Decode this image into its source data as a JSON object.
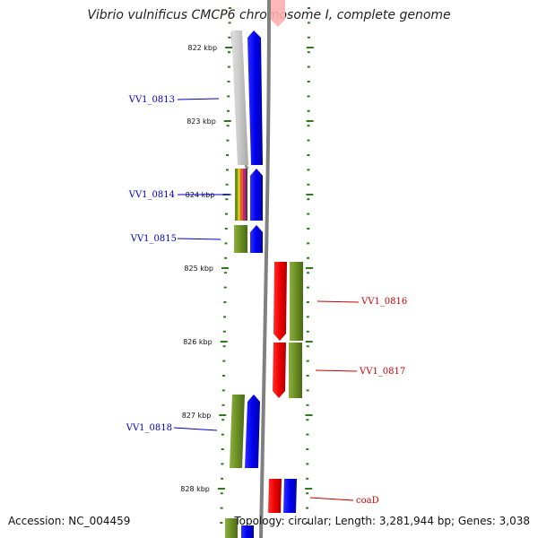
{
  "title": "Vibrio vulnificus CMCP6 chromosome I, complete genome",
  "footer": {
    "accession": "Accession: NC_004459",
    "stats": "Topology: circular; Length: 3,281,944 bp; Genes: 3,038"
  },
  "colors": {
    "forward_gene": "#0000ff",
    "reverse_gene": "#ff0000",
    "cog_green": "#6b8e23",
    "cog_gray": "#c8c8c8",
    "ticks": "#2f7a1f",
    "backbone": "#808080"
  },
  "scale_labels": [
    "822 kbp",
    "823 kbp",
    "824 kbp",
    "825 kbp",
    "826 kbp",
    "827 kbp",
    "828 kbp"
  ],
  "genes_left": [
    {
      "label": "VV1_0813",
      "strand": "forward",
      "category_color": "gray"
    },
    {
      "label": "VV1_0814",
      "strand": "forward",
      "category_color": "multi"
    },
    {
      "label": "VV1_0815",
      "strand": "forward",
      "category_color": "green"
    },
    {
      "label": "VV1_0818",
      "strand": "forward",
      "category_color": "green"
    }
  ],
  "genes_right": [
    {
      "label": "VV1_0816",
      "strand": "reverse",
      "category_color": "green"
    },
    {
      "label": "VV1_0817",
      "strand": "reverse",
      "category_color": "green"
    },
    {
      "label": "coaD",
      "strand": "reverse",
      "category_color": "blue"
    }
  ]
}
